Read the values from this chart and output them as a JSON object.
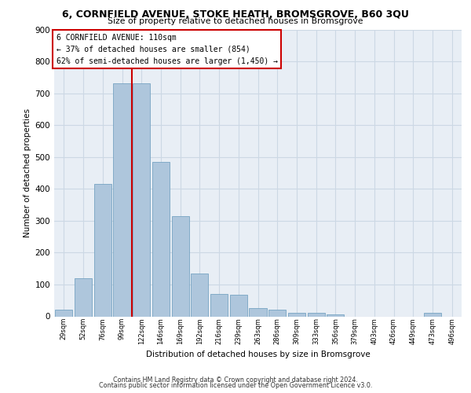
{
  "title1": "6, CORNFIELD AVENUE, STOKE HEATH, BROMSGROVE, B60 3QU",
  "title2": "Size of property relative to detached houses in Bromsgrove",
  "xlabel": "Distribution of detached houses by size in Bromsgrove",
  "ylabel": "Number of detached properties",
  "bar_color": "#aec6dc",
  "bar_edge_color": "#6699bb",
  "categories": [
    "29sqm",
    "52sqm",
    "76sqm",
    "99sqm",
    "122sqm",
    "146sqm",
    "169sqm",
    "192sqm",
    "216sqm",
    "239sqm",
    "263sqm",
    "286sqm",
    "309sqm",
    "333sqm",
    "356sqm",
    "379sqm",
    "403sqm",
    "426sqm",
    "449sqm",
    "473sqm",
    "496sqm"
  ],
  "values": [
    20,
    120,
    415,
    730,
    730,
    485,
    315,
    135,
    70,
    68,
    25,
    20,
    12,
    10,
    5,
    0,
    0,
    0,
    0,
    10,
    0
  ],
  "vline_color": "#cc0000",
  "ylim": [
    0,
    900
  ],
  "yticks": [
    0,
    100,
    200,
    300,
    400,
    500,
    600,
    700,
    800,
    900
  ],
  "annotation_title": "6 CORNFIELD AVENUE: 110sqm",
  "annotation_line1": "← 37% of detached houses are smaller (854)",
  "annotation_line2": "62% of semi-detached houses are larger (1,450) →",
  "annotation_box_color": "#ffffff",
  "annotation_box_edge": "#cc0000",
  "footer_line1": "Contains HM Land Registry data © Crown copyright and database right 2024.",
  "footer_line2": "Contains public sector information licensed under the Open Government Licence v3.0.",
  "grid_color": "#ccd8e4",
  "background_color": "#e8eef5"
}
